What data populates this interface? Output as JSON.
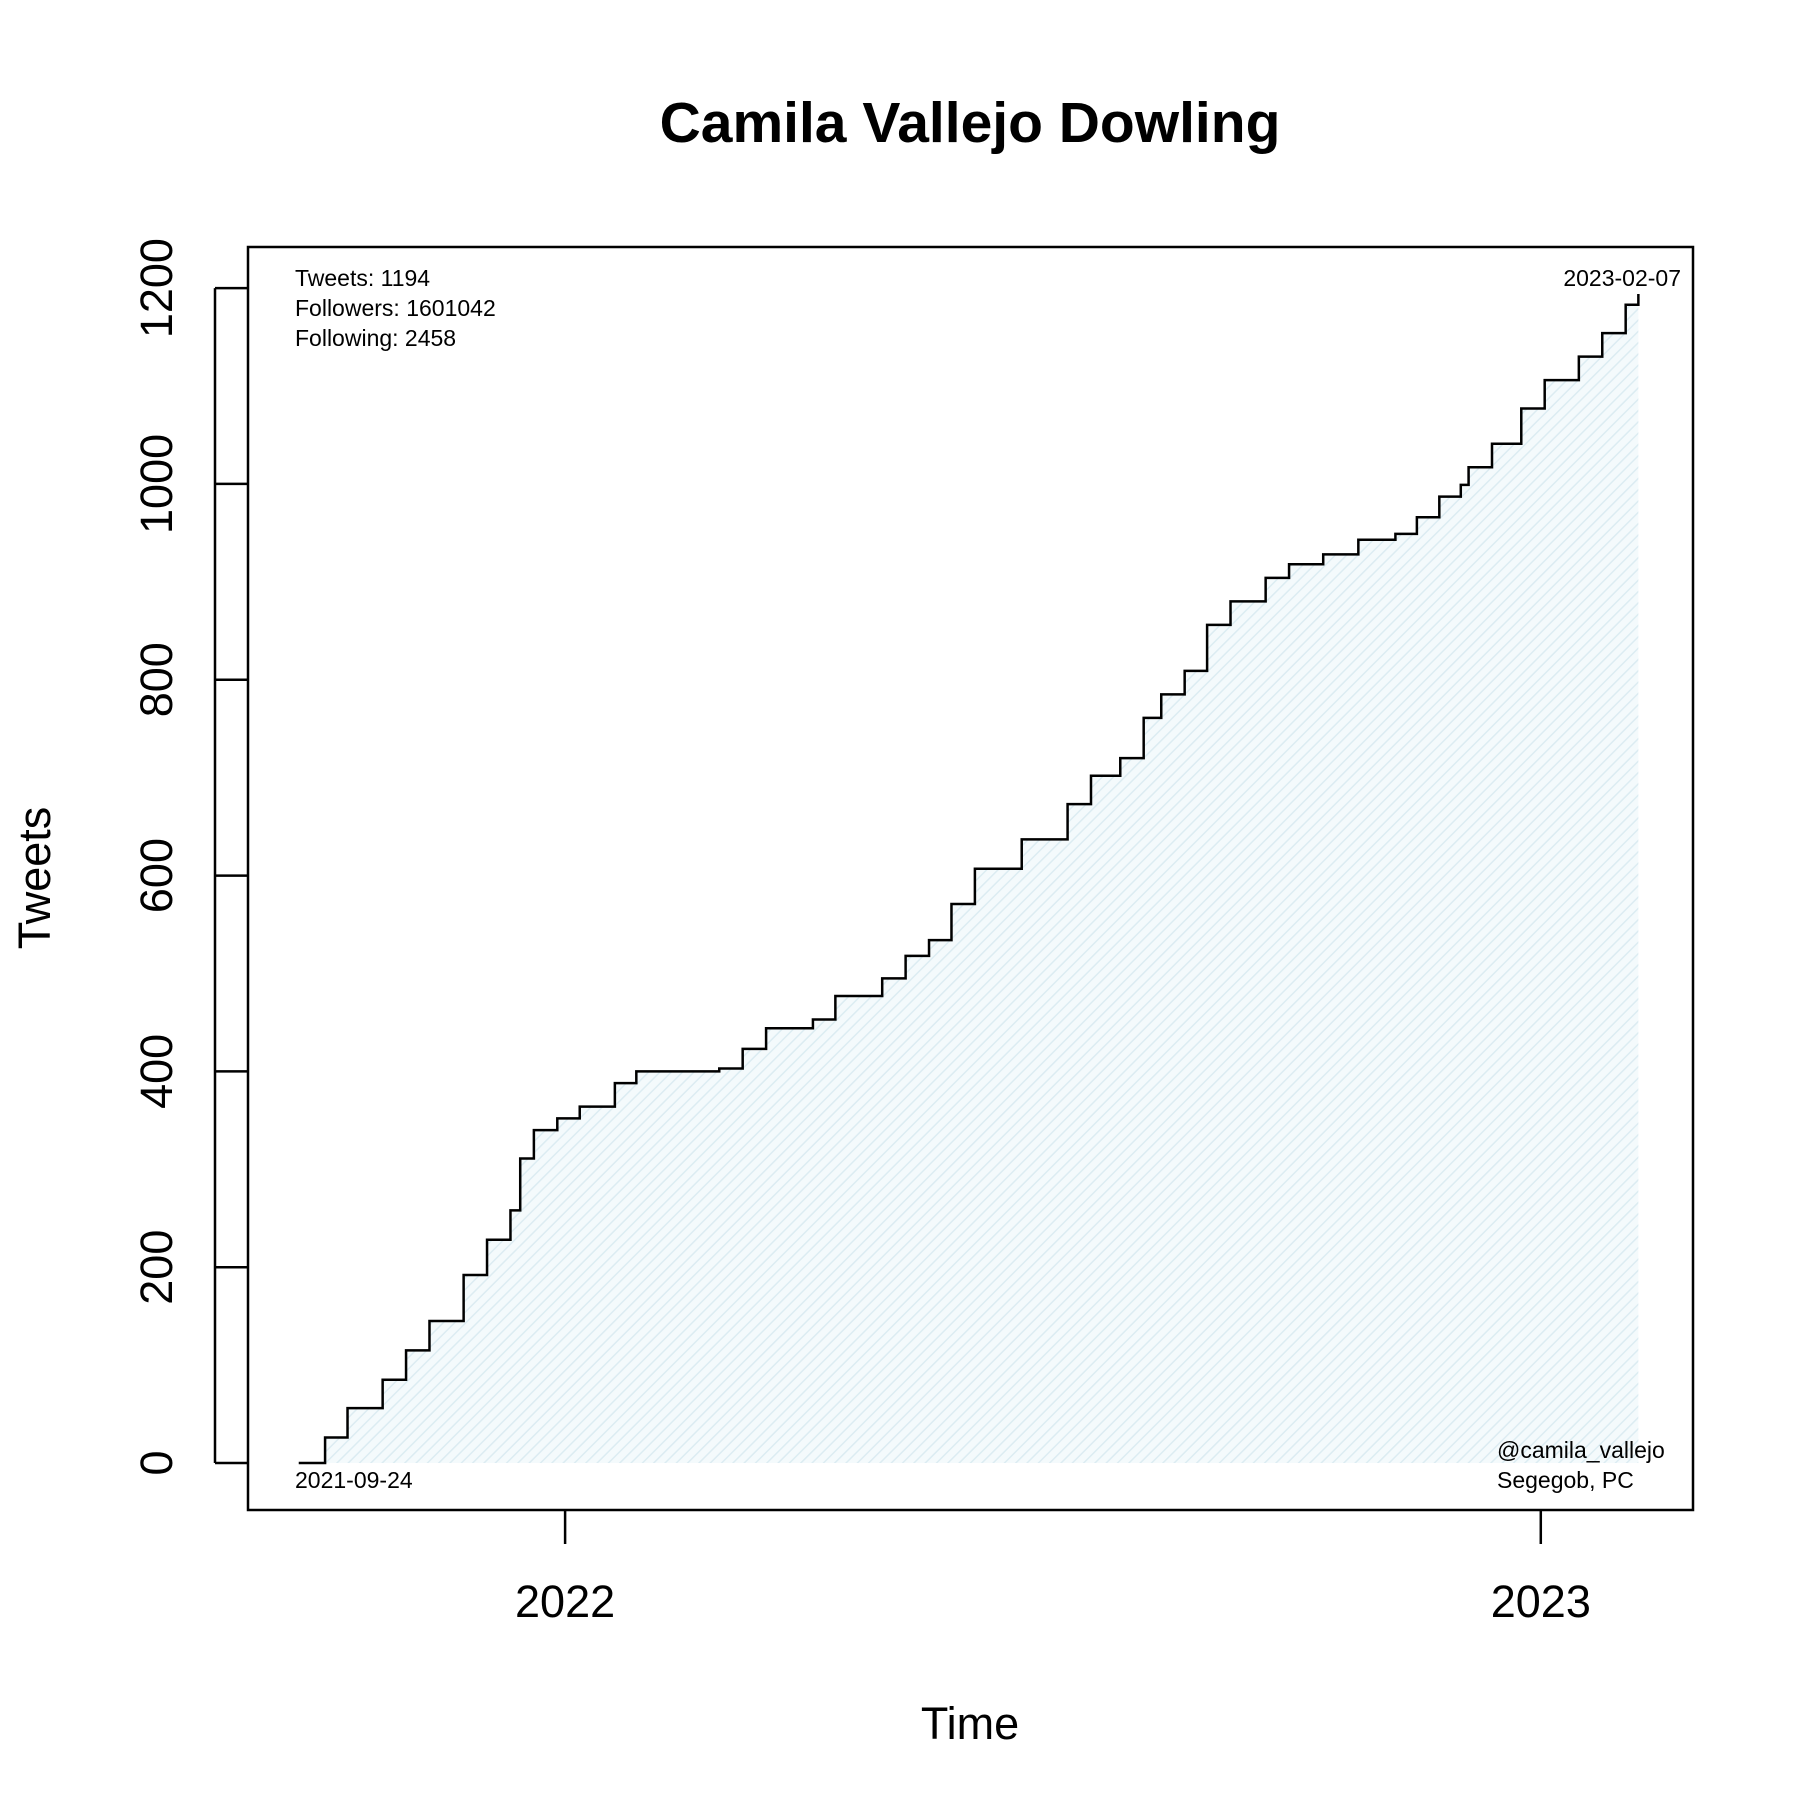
{
  "chart_data": {
    "type": "step-area",
    "title": "Camila Vallejo Dowling",
    "x_label": "Time",
    "y_label": "Tweets",
    "x": [
      2021.727,
      2021.754,
      2021.777,
      2021.813,
      2021.837,
      2021.861,
      2021.896,
      2021.92,
      2021.944,
      2021.954,
      2021.968,
      2021.992,
      2022.015,
      2022.051,
      2022.073,
      2022.158,
      2022.182,
      2022.206,
      2022.254,
      2022.277,
      2022.325,
      2022.349,
      2022.373,
      2022.396,
      2022.42,
      2022.468,
      2022.515,
      2022.539,
      2022.569,
      2022.593,
      2022.611,
      2022.635,
      2022.658,
      2022.682,
      2022.718,
      2022.742,
      2022.777,
      2022.813,
      2022.851,
      2022.873,
      2022.896,
      2022.918,
      2022.926,
      2022.95,
      2022.98,
      2023.004,
      2023.039,
      2023.063,
      2023.087,
      2023.1
    ],
    "values": [
      0,
      26,
      56,
      85,
      115,
      145,
      192,
      228,
      258,
      311,
      340,
      352,
      364,
      388,
      400,
      403,
      423,
      444,
      453,
      477,
      495,
      518,
      534,
      571,
      607,
      637,
      673,
      702,
      720,
      761,
      785,
      809,
      856,
      880,
      904,
      918,
      928,
      943,
      949,
      966,
      987,
      999,
      1017,
      1041,
      1077,
      1106,
      1130,
      1154,
      1183,
      1194
    ],
    "color": "#000000",
    "fill_color": "#e3f1f5",
    "xlim": [
      2021.675,
      2023.156
    ],
    "xticks": [
      2022,
      2023
    ],
    "ylim": [
      -48,
      1242
    ],
    "yticks": [
      0,
      200,
      400,
      600,
      800,
      1000,
      1200
    ],
    "annotations": {
      "top_left": [
        "Tweets: 1194",
        "Followers: 1601042",
        "Following: 2458"
      ],
      "top_right": "2023-02-07",
      "bottom_left": "2021-09-24",
      "bottom_right": [
        "@camila_vallejo",
        "Segegob, PC"
      ]
    }
  }
}
